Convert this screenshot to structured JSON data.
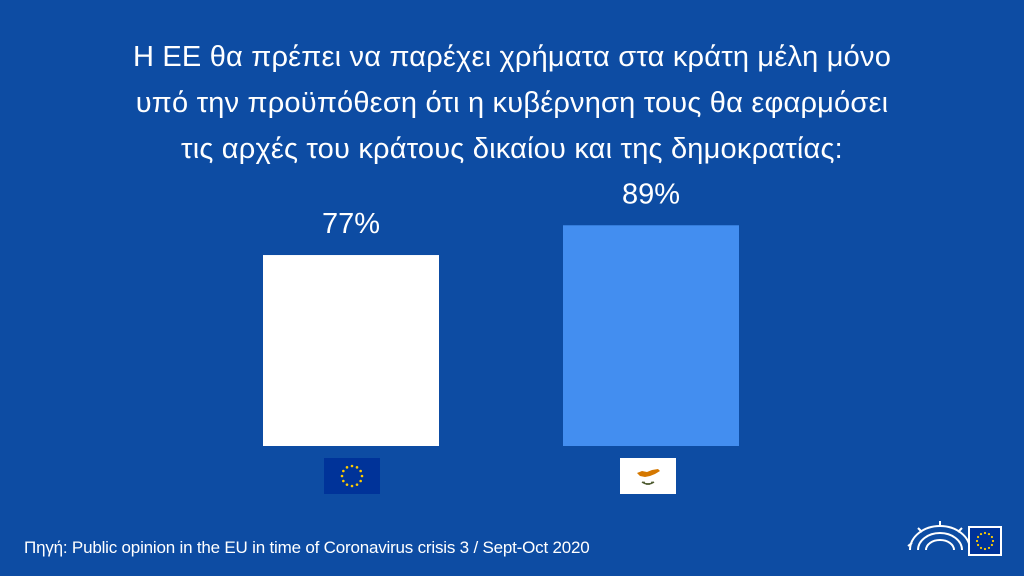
{
  "title_lines": [
    "Η ΕΕ θα πρέπει να παρέχει χρήματα στα κράτη μέλη μόνο",
    "υπό την προϋπόθεση ότι η κυβέρνηση τους θα εφαρμόσει",
    "τις αρχές του κράτους δικαίου και της δημοκρατίας:"
  ],
  "source": "Πηγή: Public opinion in the EU in time of Coronavirus crisis 3 / Sept-Oct 2020",
  "colors": {
    "background": "#0d4ca3",
    "eu_bar": "#ffffff",
    "cy_bar": "#438ef0",
    "eu_flag_blue": "#003399",
    "eu_flag_star": "#ffcc00",
    "cy_flag_map": "#d57800",
    "cy_flag_branch": "#4e5b31"
  },
  "icons": {
    "eu_flag": "eu-flag-icon",
    "cy_flag": "cyprus-flag-icon",
    "logo": "european-parliament-logo-icon"
  },
  "chart_data": {
    "type": "bar",
    "categories": [
      "EU",
      "Cyprus"
    ],
    "values": [
      77,
      89
    ],
    "labels": [
      "77%",
      "89%"
    ],
    "ylim": [
      0,
      100
    ],
    "grid": false
  }
}
